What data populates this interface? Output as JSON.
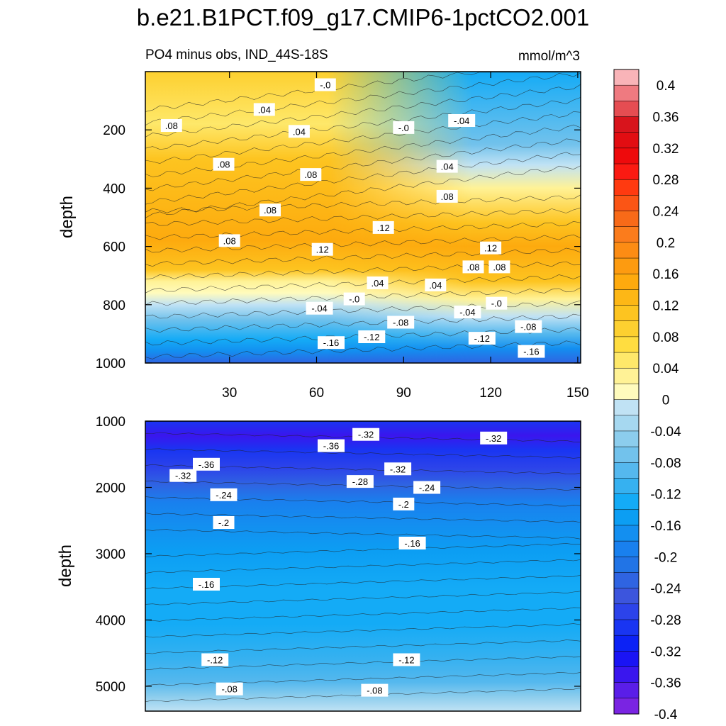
{
  "chart_data": {
    "type": "heatmap",
    "title": "b.e21.B1PCT.f09_g17.CMIP6-1pctCO2.001",
    "subtitle_left": "PO4 minus obs, IND_44S-18S",
    "units": "mmol/m^3",
    "xlabel": "",
    "ylabel": "depth",
    "x_ticks": [
      "30",
      "60",
      "90",
      "120",
      "150"
    ],
    "x_tick_values": [
      30,
      60,
      90,
      120,
      150
    ],
    "xlim": [
      1,
      151
    ],
    "panels": [
      {
        "name": "upper",
        "ylim": [
          0,
          1000
        ],
        "y_ticks": [
          "200",
          "400",
          "600",
          "800",
          "1000"
        ],
        "y_tick_values": [
          200,
          400,
          600,
          800,
          1000
        ],
        "contour_labels": [
          {
            "text": "-.0",
            "x": 63,
            "y": 45
          },
          {
            "text": ".04",
            "x": 42,
            "y": 130
          },
          {
            "text": "-.04",
            "x": 110,
            "y": 168
          },
          {
            "text": ".08",
            "x": 10,
            "y": 185
          },
          {
            "text": "-.0",
            "x": 90,
            "y": 192
          },
          {
            "text": ".04",
            "x": 54,
            "y": 205
          },
          {
            "text": ".08",
            "x": 28,
            "y": 318
          },
          {
            "text": ".04",
            "x": 105,
            "y": 325
          },
          {
            "text": ".08",
            "x": 58,
            "y": 353
          },
          {
            "text": ".08",
            "x": 44,
            "y": 475
          },
          {
            "text": ".08",
            "x": 105,
            "y": 428
          },
          {
            "text": ".08",
            "x": 30,
            "y": 580
          },
          {
            "text": ".12",
            "x": 83,
            "y": 535
          },
          {
            "text": ".12",
            "x": 62,
            "y": 610
          },
          {
            "text": ".12",
            "x": 120,
            "y": 605
          },
          {
            "text": ".08",
            "x": 114,
            "y": 670
          },
          {
            "text": ".08",
            "x": 123,
            "y": 670
          },
          {
            "text": ".04",
            "x": 81,
            "y": 725
          },
          {
            "text": ".04",
            "x": 101,
            "y": 732
          },
          {
            "text": "-.0",
            "x": 73,
            "y": 780
          },
          {
            "text": "-.0",
            "x": 122,
            "y": 795
          },
          {
            "text": "-.04",
            "x": 61,
            "y": 812
          },
          {
            "text": "-.04",
            "x": 112,
            "y": 825
          },
          {
            "text": "-.08",
            "x": 89,
            "y": 860
          },
          {
            "text": "-.08",
            "x": 133,
            "y": 875
          },
          {
            "text": "-.12",
            "x": 79,
            "y": 910
          },
          {
            "text": "-.12",
            "x": 117,
            "y": 915
          },
          {
            "text": "-.16",
            "x": 65,
            "y": 930
          },
          {
            "text": "-.16",
            "x": 134,
            "y": 960
          }
        ]
      },
      {
        "name": "lower",
        "ylim": [
          1000,
          5375
        ],
        "y_ticks": [
          "1000",
          "2000",
          "3000",
          "4000",
          "5000"
        ],
        "y_tick_values": [
          1000,
          2000,
          3000,
          4000,
          5000
        ],
        "contour_labels": [
          {
            "text": "-.32",
            "x": 77,
            "y": 1200
          },
          {
            "text": "-.32",
            "x": 121,
            "y": 1255
          },
          {
            "text": "-.36",
            "x": 65,
            "y": 1370
          },
          {
            "text": "-.36",
            "x": 22,
            "y": 1650
          },
          {
            "text": "-.32",
            "x": 88,
            "y": 1720
          },
          {
            "text": "-.32",
            "x": 14,
            "y": 1820
          },
          {
            "text": "-.28",
            "x": 75,
            "y": 1910
          },
          {
            "text": "-.24",
            "x": 98,
            "y": 2000
          },
          {
            "text": "-.24",
            "x": 28,
            "y": 2110
          },
          {
            "text": "-.2",
            "x": 90,
            "y": 2250
          },
          {
            "text": "-.2",
            "x": 28,
            "y": 2530
          },
          {
            "text": "-.16",
            "x": 93,
            "y": 2840
          },
          {
            "text": "-.16",
            "x": 22,
            "y": 3460
          },
          {
            "text": "-.12",
            "x": 25,
            "y": 4600
          },
          {
            "text": "-.12",
            "x": 91,
            "y": 4600
          },
          {
            "text": "-.08",
            "x": 30,
            "y": 5040
          },
          {
            "text": "-.08",
            "x": 80,
            "y": 5060
          }
        ]
      }
    ],
    "colorbar": {
      "labels": [
        "0.4",
        "0.36",
        "0.32",
        "0.28",
        "0.24",
        "0.2",
        "0.16",
        "0.12",
        "0.08",
        "0.04",
        "0",
        "-0.04",
        "-0.08",
        "-0.12",
        "-0.16",
        "-0.2",
        "-0.24",
        "-0.28",
        "-0.32",
        "-0.36",
        "-0.4"
      ],
      "colors": [
        "#f9b4b8",
        "#ef7a80",
        "#e54d52",
        "#d8141c",
        "#e20d12",
        "#ee0a0c",
        "#fb1a12",
        "#ff3a10",
        "#fb5515",
        "#f86a18",
        "#fb7c1c",
        "#fc8c14",
        "#fd9b10",
        "#feaa0e",
        "#fdb716",
        "#fdc420",
        "#fdd030",
        "#ffdd40",
        "#fee86a",
        "#fff296",
        "#fffbbd",
        "#c0e2f4",
        "#a6d8f0",
        "#8ccded",
        "#72c2ec",
        "#55b8ee",
        "#36b1f0",
        "#14abf6",
        "#0c9ef3",
        "#138ff0",
        "#1980ee",
        "#2174e6",
        "#2f64e2",
        "#3c55dd",
        "#2c43ea",
        "#1935f2",
        "#0c22f5",
        "#1a14f4",
        "#3a16ee",
        "#5a1ee8",
        "#7a24e2"
      ]
    }
  }
}
